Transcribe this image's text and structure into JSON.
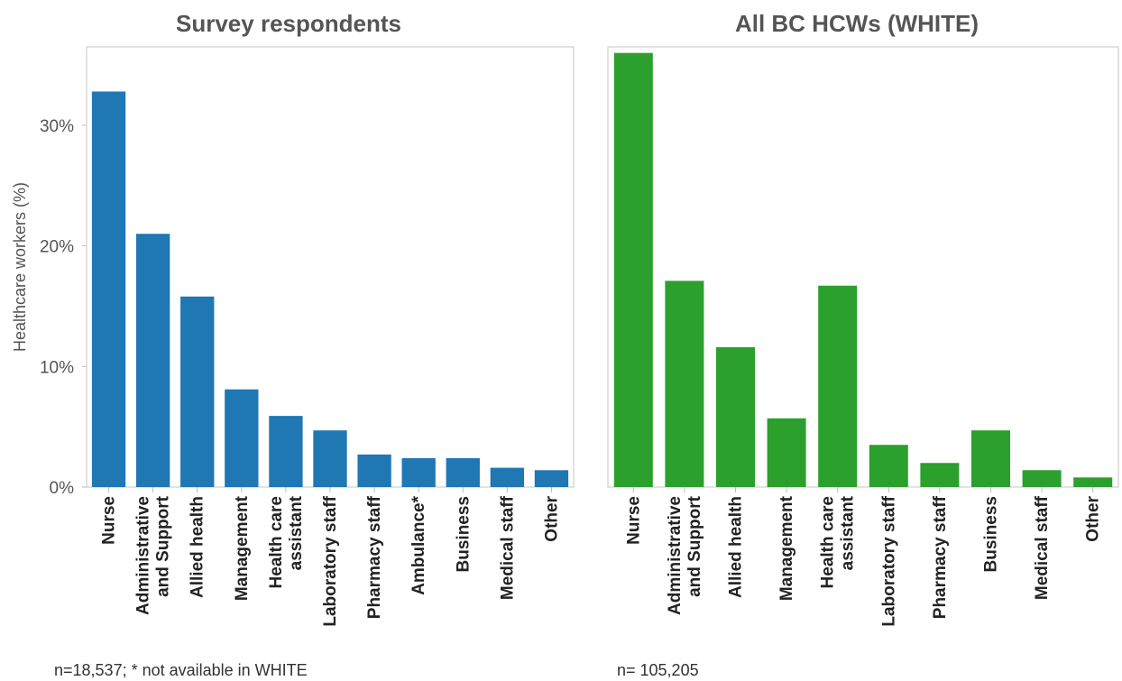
{
  "chart_data": [
    {
      "type": "bar",
      "title": "Survey respondents",
      "ylabel": "Healthcare workers (%)",
      "xlabel": "",
      "ylim": [
        0,
        36.5
      ],
      "yticks": [
        0,
        10,
        20,
        30
      ],
      "ytick_labels": [
        "0%",
        "10%",
        "20%",
        "30%"
      ],
      "color": "#1f77b4",
      "categories": [
        [
          "Nurse"
        ],
        [
          "Administrative",
          "and Support"
        ],
        [
          "Allied health"
        ],
        [
          "Management"
        ],
        [
          "Health care",
          "assistant"
        ],
        [
          "Laboratory staff"
        ],
        [
          "Pharmacy staff"
        ],
        [
          "Ambulance*"
        ],
        [
          "Business"
        ],
        [
          "Medical staff"
        ],
        [
          "Other"
        ]
      ],
      "values": [
        32.8,
        21.0,
        15.8,
        8.1,
        5.9,
        4.7,
        2.7,
        2.4,
        2.4,
        1.6,
        1.4
      ],
      "note": "n=18,537; * not available in WHITE",
      "grid": false
    },
    {
      "type": "bar",
      "title": "All BC HCWs (WHITE)",
      "xlabel": "",
      "ylim": [
        0,
        36.5
      ],
      "color": "#2ca02c",
      "categories": [
        [
          "Nurse"
        ],
        [
          "Administrative",
          "and Support"
        ],
        [
          "Allied health"
        ],
        [
          "Management"
        ],
        [
          "Health care",
          "assistant"
        ],
        [
          "Laboratory staff"
        ],
        [
          "Pharmacy staff"
        ],
        [
          "Business"
        ],
        [
          "Medical staff"
        ],
        [
          "Other"
        ]
      ],
      "values": [
        36.0,
        17.1,
        11.6,
        5.7,
        16.7,
        3.5,
        2.0,
        4.7,
        1.4,
        0.8
      ],
      "note": "n= 105,205",
      "grid": false
    }
  ]
}
